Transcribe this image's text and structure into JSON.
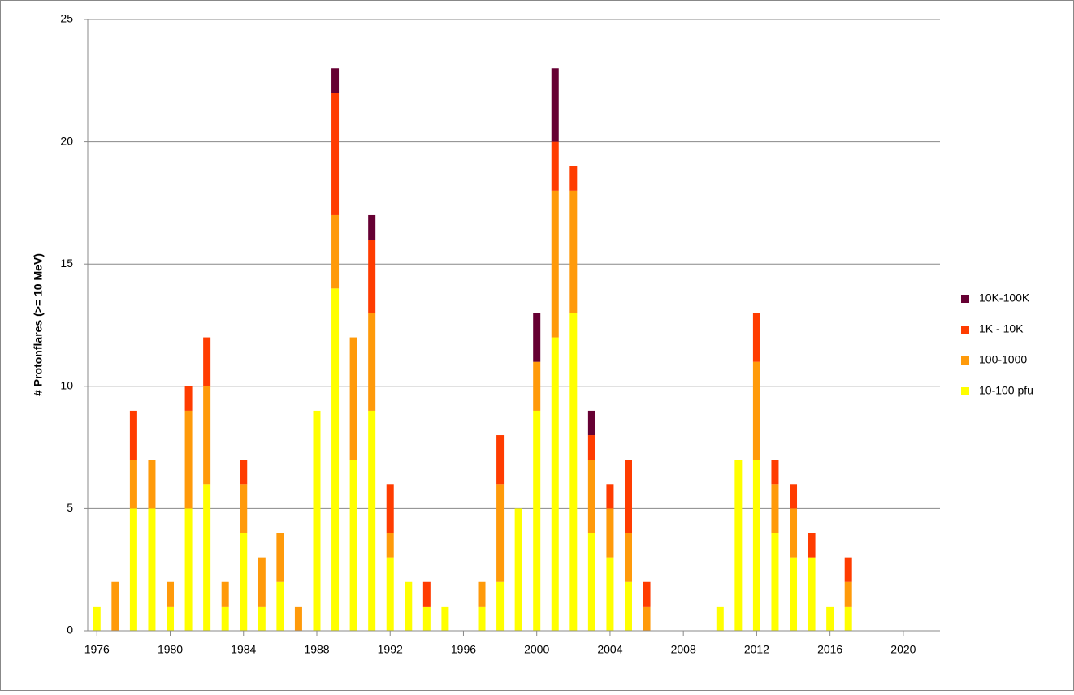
{
  "chart_data": {
    "type": "bar",
    "stacked": true,
    "y_label": "# Protonflares (>= 10 MeV)",
    "x": [
      1976,
      1977,
      1978,
      1979,
      1980,
      1981,
      1982,
      1983,
      1984,
      1985,
      1986,
      1987,
      1988,
      1989,
      1990,
      1991,
      1992,
      1993,
      1994,
      1995,
      1996,
      1997,
      1998,
      1999,
      2000,
      2001,
      2002,
      2003,
      2004,
      2005,
      2006,
      2007,
      2008,
      2009,
      2010,
      2011,
      2012,
      2013,
      2014,
      2015,
      2016,
      2017
    ],
    "series": [
      {
        "name": "10-100 pfu",
        "color": "#ffff00",
        "values": [
          1,
          0,
          5,
          5,
          1,
          5,
          6,
          1,
          4,
          1,
          2,
          0,
          9,
          14,
          7,
          9,
          3,
          2,
          1,
          1,
          0,
          1,
          2,
          5,
          9,
          12,
          13,
          4,
          3,
          2,
          0,
          0,
          0,
          0,
          1,
          7,
          7,
          4,
          3,
          3,
          1,
          1
        ]
      },
      {
        "name": "100-1000",
        "color": "#ff9a0a",
        "values": [
          0,
          2,
          2,
          2,
          1,
          4,
          4,
          1,
          2,
          2,
          2,
          1,
          0,
          3,
          5,
          4,
          1,
          0,
          0,
          0,
          0,
          1,
          4,
          0,
          2,
          6,
          5,
          3,
          2,
          2,
          1,
          0,
          0,
          0,
          0,
          0,
          4,
          2,
          2,
          0,
          0,
          1
        ]
      },
      {
        "name": "1K - 10K",
        "color": "#ff3c00",
        "values": [
          0,
          0,
          2,
          0,
          0,
          1,
          2,
          0,
          1,
          0,
          0,
          0,
          0,
          5,
          0,
          3,
          2,
          0,
          1,
          0,
          0,
          0,
          2,
          0,
          0,
          2,
          1,
          1,
          1,
          3,
          1,
          0,
          0,
          0,
          0,
          0,
          2,
          1,
          1,
          1,
          0,
          1
        ]
      },
      {
        "name": "10K-100K",
        "color": "#660033",
        "values": [
          0,
          0,
          0,
          0,
          0,
          0,
          0,
          0,
          0,
          0,
          0,
          0,
          0,
          1,
          0,
          1,
          0,
          0,
          0,
          0,
          0,
          0,
          0,
          0,
          2,
          3,
          0,
          1,
          0,
          0,
          0,
          0,
          0,
          0,
          0,
          0,
          0,
          0,
          0,
          0,
          0,
          0
        ]
      }
    ],
    "xlim": [
      1975.5,
      2022
    ],
    "xticks": [
      1976,
      1980,
      1984,
      1988,
      1992,
      1996,
      2000,
      2004,
      2008,
      2012,
      2016,
      2020
    ],
    "ylim": [
      0,
      25
    ],
    "yticks": [
      0,
      5,
      10,
      15,
      20,
      25
    ],
    "grid": true,
    "legend": "right"
  }
}
